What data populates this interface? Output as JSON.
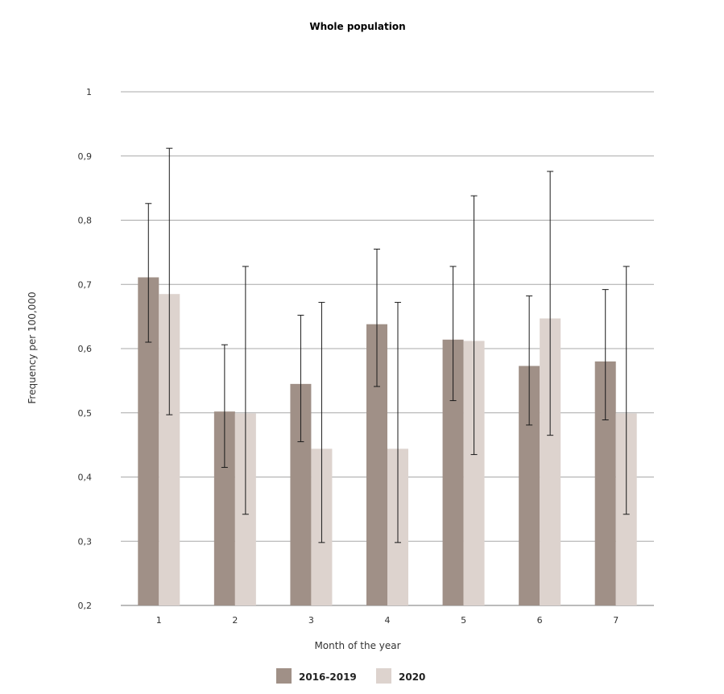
{
  "chart_data": {
    "type": "bar",
    "title": "Whole population",
    "xlabel": "Month of the year",
    "ylabel": "Frequency per 100,000",
    "categories": [
      "1",
      "2",
      "3",
      "4",
      "5",
      "6",
      "7"
    ],
    "ylim": [
      0.2,
      1.0
    ],
    "yticks": [
      "0,2",
      "0,3",
      "0,4",
      "0,5",
      "0,6",
      "0,7",
      "0,8",
      "0,9",
      "1"
    ],
    "ytick_values": [
      0.2,
      0.3,
      0.4,
      0.5,
      0.6,
      0.7,
      0.8,
      0.9,
      1.0
    ],
    "grid": true,
    "legend_position": "bottom-center",
    "series": [
      {
        "name": "2016-2019",
        "color": "#a09087",
        "values": [
          0.711,
          0.502,
          0.545,
          0.638,
          0.614,
          0.573,
          0.58
        ],
        "err_low": [
          0.61,
          0.415,
          0.455,
          0.541,
          0.519,
          0.481,
          0.489
        ],
        "err_high": [
          0.826,
          0.606,
          0.652,
          0.755,
          0.728,
          0.682,
          0.692
        ]
      },
      {
        "name": "2020",
        "color": "#ddd3ce",
        "values": [
          0.685,
          0.499,
          0.444,
          0.444,
          0.612,
          0.647,
          0.499
        ],
        "err_low": [
          0.497,
          0.342,
          0.298,
          0.298,
          0.435,
          0.465,
          0.342
        ],
        "err_high": [
          0.912,
          0.728,
          0.672,
          0.672,
          0.838,
          0.876,
          0.728
        ]
      }
    ]
  }
}
